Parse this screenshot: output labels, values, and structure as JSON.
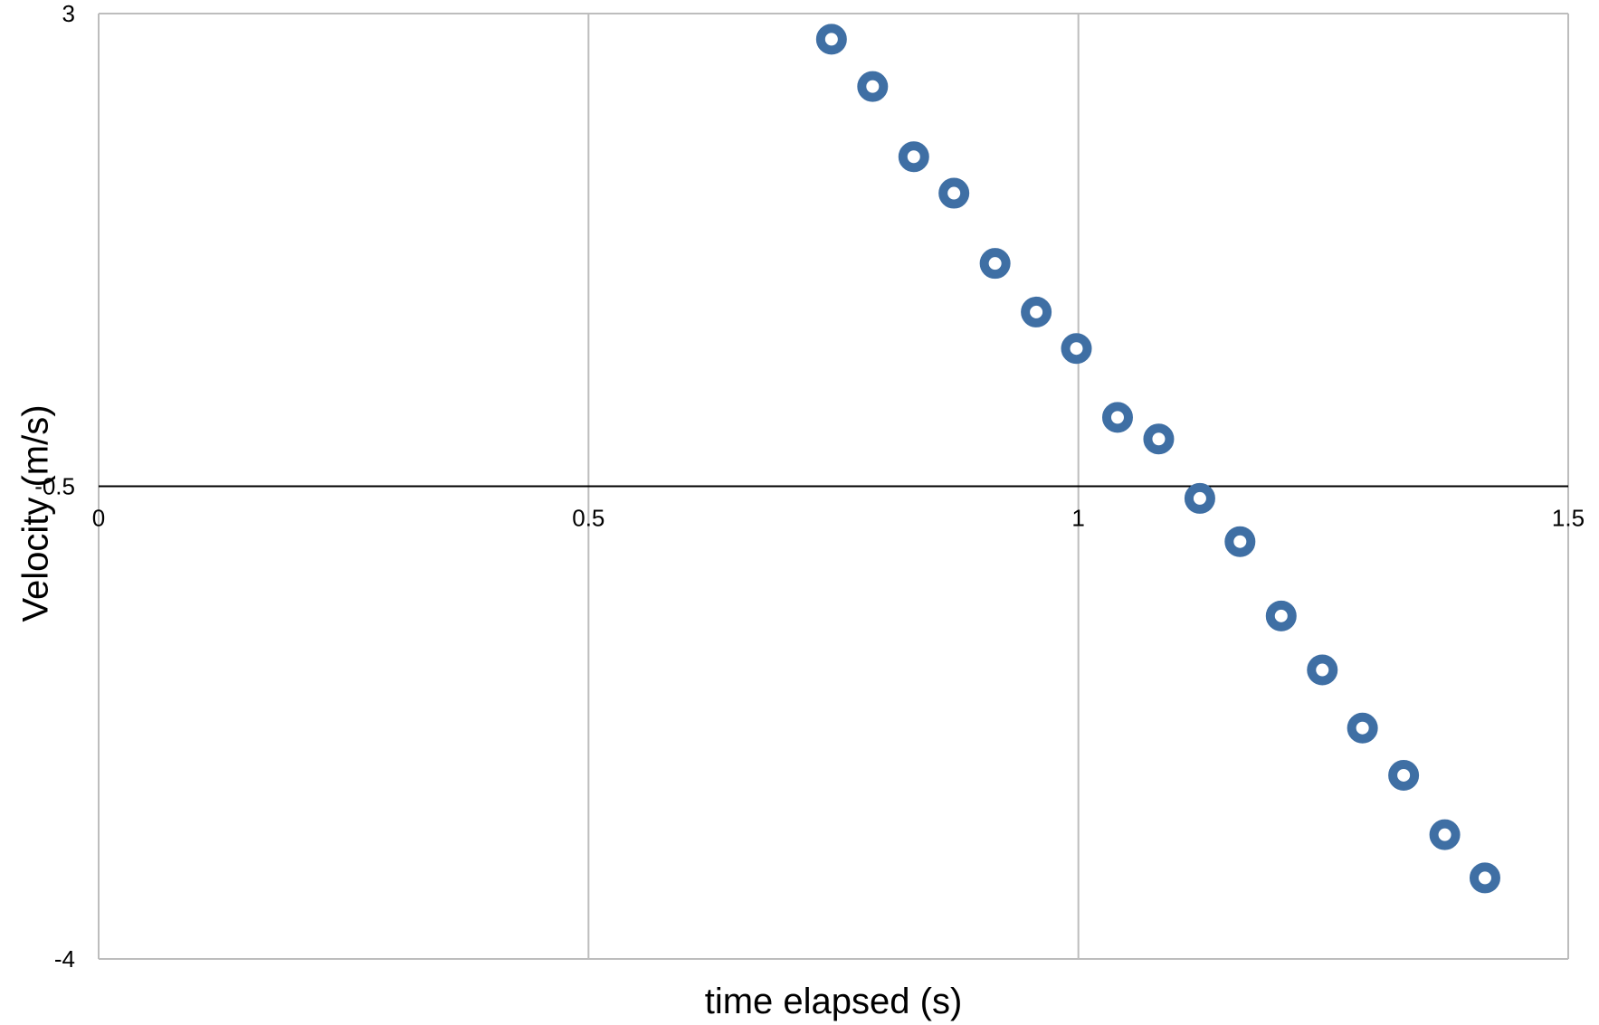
{
  "chart_data": {
    "type": "scatter",
    "title": "",
    "xlabel": "time elapsed (s)",
    "ylabel": "Velocity (m/s)",
    "xlim": [
      0,
      1.5
    ],
    "ylim": [
      -4,
      3
    ],
    "x_ticks": [
      0,
      0.5,
      1,
      1.5
    ],
    "x_tick_labels": [
      "0",
      "0.5",
      "1",
      "1.5"
    ],
    "y_ticks": [
      -4,
      -0.5,
      3
    ],
    "y_tick_labels": [
      "-4",
      "-0.5",
      "3"
    ],
    "x_axis_crosses_at": -0.5,
    "grid": true,
    "legend": "none",
    "marker_color": "#3F6FA4",
    "gridline_color": "#BDBDBD",
    "axis_color": "#000000",
    "series": [
      {
        "x": [
          0.748,
          0.79,
          0.832,
          0.873,
          0.915,
          0.957,
          0.998,
          1.04,
          1.082,
          1.124,
          1.165,
          1.207,
          1.249,
          1.29,
          1.332,
          1.374,
          1.415
        ],
        "y": [
          2.81,
          2.46,
          1.94,
          1.67,
          1.15,
          0.79,
          0.52,
          0.01,
          -0.15,
          -0.59,
          -0.91,
          -1.46,
          -1.86,
          -2.29,
          -2.64,
          -3.08,
          -3.4
        ]
      }
    ]
  }
}
